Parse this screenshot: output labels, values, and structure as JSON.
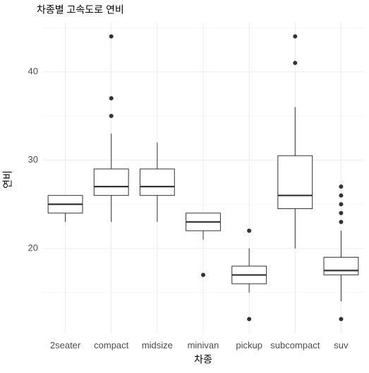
{
  "chart_data": {
    "type": "boxplot",
    "title": "차종별 고속도로 연비",
    "x_label": "차종",
    "y_label": "연비",
    "categories": [
      "2seater",
      "compact",
      "midsize",
      "minivan",
      "pickup",
      "subcompact",
      "suv"
    ],
    "boxes": [
      {
        "min": 23,
        "q1": 24,
        "median": 25,
        "q3": 26,
        "max": 26,
        "outliers": []
      },
      {
        "min": 23,
        "q1": 26,
        "median": 27,
        "q3": 29,
        "max": 33,
        "outliers": [
          35,
          37,
          44
        ]
      },
      {
        "min": 23,
        "q1": 26,
        "median": 27,
        "q3": 29,
        "max": 32,
        "outliers": []
      },
      {
        "min": 21,
        "q1": 22,
        "median": 23,
        "q3": 24,
        "max": 24,
        "outliers": [
          17
        ]
      },
      {
        "min": 15,
        "q1": 16,
        "median": 17,
        "q3": 18,
        "max": 20,
        "outliers": [
          12,
          22
        ]
      },
      {
        "min": 20,
        "q1": 24.5,
        "median": 26,
        "q3": 30.5,
        "max": 36,
        "outliers": [
          41,
          44
        ]
      },
      {
        "min": 14,
        "q1": 17,
        "median": 17.5,
        "q3": 19,
        "max": 22,
        "outliers": [
          12,
          23,
          24,
          25,
          26,
          27
        ]
      }
    ],
    "color": "#333333",
    "fill": "#ffffff",
    "ylim": [
      10.4,
      45.6
    ],
    "yticks": [
      20,
      30,
      40
    ],
    "yminorticks": [
      15,
      25,
      35,
      45
    ],
    "grid": true
  }
}
